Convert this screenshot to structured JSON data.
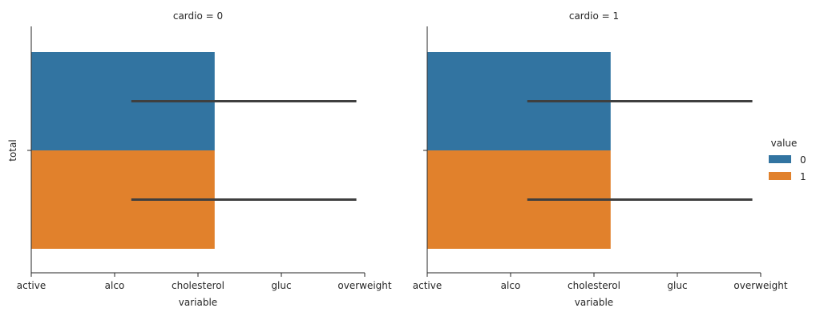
{
  "chart_data": {
    "type": "bar",
    "orientation": "horizontal",
    "facet_variable": "cardio",
    "x_categories": [
      "active",
      "alco",
      "cholesterol",
      "gluc",
      "overweight"
    ],
    "y_categories": [
      "total"
    ],
    "xlabel": "variable",
    "ylabel": "total",
    "hue_title": "value",
    "legend_position": "right",
    "grid": false,
    "colors": {
      "0": "#3274a1",
      "1": "#e1812c",
      "errorbar": "#3f3f3f"
    },
    "panels": [
      {
        "title": "cardio = 0",
        "series": [
          {
            "name": "0",
            "value": 2.2,
            "err_low": 1.2,
            "err_high": 3.9
          },
          {
            "name": "1",
            "value": 2.2,
            "err_low": 1.2,
            "err_high": 3.9
          }
        ]
      },
      {
        "title": "cardio = 1",
        "series": [
          {
            "name": "0",
            "value": 2.2,
            "err_low": 1.2,
            "err_high": 3.9
          },
          {
            "name": "1",
            "value": 2.2,
            "err_low": 1.2,
            "err_high": 3.9
          }
        ]
      }
    ]
  }
}
